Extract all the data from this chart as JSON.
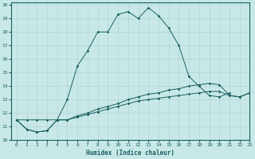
{
  "xlabel": "Humidex (Indice chaleur)",
  "bg_color": "#c8e8e8",
  "grid_color": "#b0d4d4",
  "line_color": "#1a5f5f",
  "xlim": [
    -0.5,
    23
  ],
  "ylim": [
    10,
    20.2
  ],
  "xticks": [
    0,
    1,
    2,
    3,
    4,
    5,
    6,
    7,
    8,
    9,
    10,
    11,
    12,
    13,
    14,
    15,
    16,
    17,
    18,
    19,
    20,
    21,
    22,
    23
  ],
  "yticks": [
    10,
    11,
    12,
    13,
    14,
    15,
    16,
    17,
    18,
    19,
    20
  ],
  "series": [
    {
      "x": [
        0,
        1,
        2,
        3,
        4,
        5,
        6,
        7,
        8,
        9,
        10,
        11,
        12,
        13,
        14,
        15,
        16,
        17,
        18,
        19,
        20,
        21,
        22,
        23
      ],
      "y": [
        11.5,
        11.5,
        11.5,
        11.5,
        11.5,
        13.0,
        15.5,
        16.6,
        18.0,
        18.0,
        19.3,
        19.5,
        19.0,
        19.8,
        19.2,
        18.3,
        17.0,
        14.7,
        14.0,
        13.3,
        13.2,
        13.5,
        null,
        null
      ]
    },
    {
      "x": [
        0,
        1,
        2,
        3,
        4,
        5,
        6,
        7,
        8,
        9,
        10,
        11,
        12,
        13,
        14,
        15,
        16,
        17,
        18,
        19,
        20,
        21,
        22,
        23
      ],
      "y": [
        11.5,
        10.8,
        10.6,
        10.7,
        11.5,
        11.5,
        11.8,
        12.0,
        12.3,
        12.5,
        12.7,
        13.0,
        13.2,
        13.4,
        13.5,
        13.7,
        13.8,
        14.0,
        14.1,
        14.2,
        14.1,
        13.3,
        13.2,
        13.5
      ]
    },
    {
      "x": [
        0,
        1,
        2,
        3,
        4,
        5,
        6,
        7,
        8,
        9,
        10,
        11,
        12,
        13,
        14,
        15,
        16,
        17,
        18,
        19,
        20,
        21,
        22,
        23
      ],
      "y": [
        11.5,
        10.8,
        10.6,
        10.7,
        11.5,
        11.5,
        11.7,
        11.9,
        12.1,
        12.3,
        12.5,
        12.7,
        12.9,
        13.0,
        13.1,
        13.2,
        13.3,
        13.4,
        13.5,
        13.6,
        13.6,
        13.3,
        13.2,
        13.5
      ]
    }
  ]
}
